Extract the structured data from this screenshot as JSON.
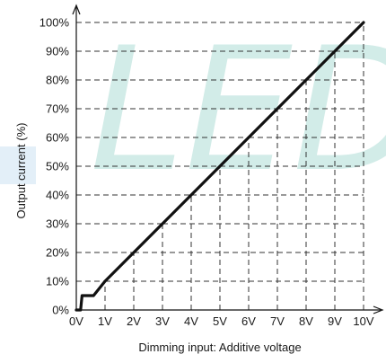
{
  "watermark": {
    "text": "LED",
    "color_text": "#d2ece8",
    "color_bar": "#e3eff8"
  },
  "chart_data": {
    "type": "line",
    "title": "",
    "xlabel": "Dimming input: Additive voltage",
    "ylabel": "Output current (%)",
    "x_ticks": [
      "0V",
      "1V",
      "2V",
      "3V",
      "4V",
      "5V",
      "6V",
      "7V",
      "8V",
      "9V",
      "10V"
    ],
    "y_ticks": [
      "0%",
      "10%",
      "20%",
      "30%",
      "40%",
      "50%",
      "60%",
      "70%",
      "80%",
      "90%",
      "100%"
    ],
    "xlim": [
      0,
      10
    ],
    "ylim": [
      0,
      100
    ],
    "grid": "dashed reference lines at every tick",
    "series": [
      {
        "color": "#111111",
        "x": [
          0,
          0.15,
          0.2,
          0.6,
          1,
          2,
          3,
          4,
          5,
          6,
          7,
          8,
          9,
          10
        ],
        "y": [
          0,
          0,
          5,
          5,
          10,
          20,
          30,
          40,
          50,
          60,
          70,
          80,
          90,
          100
        ]
      }
    ]
  }
}
